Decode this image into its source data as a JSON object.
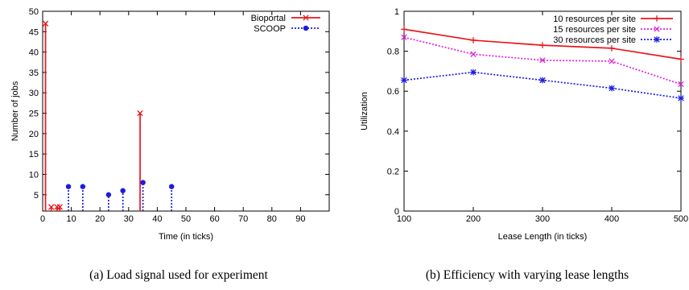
{
  "chart_data": [
    {
      "type": "impulse",
      "xlabel": "Time (in ticks)",
      "ylabel": "Number of jobs",
      "xlim": [
        0,
        100
      ],
      "ylim": [
        1,
        50
      ],
      "xticks": [
        0,
        10,
        20,
        30,
        40,
        50,
        60,
        70,
        80,
        90
      ],
      "yticks": [
        5,
        10,
        15,
        20,
        25,
        30,
        35,
        40,
        45,
        50
      ],
      "legend_position": "top-right",
      "series": [
        {
          "name": "Bioportal",
          "color": "#e8171c",
          "style": "solid",
          "marker": "x",
          "points": [
            [
              1,
              47
            ],
            [
              3,
              2
            ],
            [
              5,
              2
            ],
            [
              6,
              2
            ],
            [
              34,
              25
            ]
          ]
        },
        {
          "name": "SCOOP",
          "color": "#1c1ce0",
          "style": "dotted",
          "marker": "dot",
          "points": [
            [
              9,
              7
            ],
            [
              14,
              7
            ],
            [
              23,
              5
            ],
            [
              28,
              6
            ],
            [
              35,
              8
            ],
            [
              45,
              7
            ]
          ]
        }
      ]
    },
    {
      "type": "line",
      "xlabel": "Lease Length (in ticks)",
      "ylabel": "Utilization",
      "xlim": [
        100,
        500
      ],
      "ylim": [
        0,
        1
      ],
      "xticks": [
        100,
        200,
        300,
        400,
        500
      ],
      "yticks": [
        "0",
        "0.2",
        "0.4",
        "0.6",
        "0.8",
        "1"
      ],
      "legend_position": "top-right",
      "x": [
        100,
        200,
        300,
        400,
        500
      ],
      "series": [
        {
          "name": "10 resources per site",
          "color": "#e8171c",
          "style": "solid",
          "marker": "plus",
          "values": [
            0.91,
            0.855,
            0.83,
            0.815,
            0.76
          ]
        },
        {
          "name": "15 resources per site",
          "color": "#e020e0",
          "style": "dotted",
          "marker": "x",
          "values": [
            0.87,
            0.785,
            0.755,
            0.75,
            0.635
          ]
        },
        {
          "name": "30 resources per site",
          "color": "#1c1ce0",
          "style": "dotted",
          "marker": "star",
          "values": [
            0.655,
            0.695,
            0.655,
            0.615,
            0.565
          ]
        }
      ]
    }
  ],
  "captions": {
    "left": "(a) Load signal used for experiment",
    "right": "(b) Efficiency with varying lease lengths"
  }
}
